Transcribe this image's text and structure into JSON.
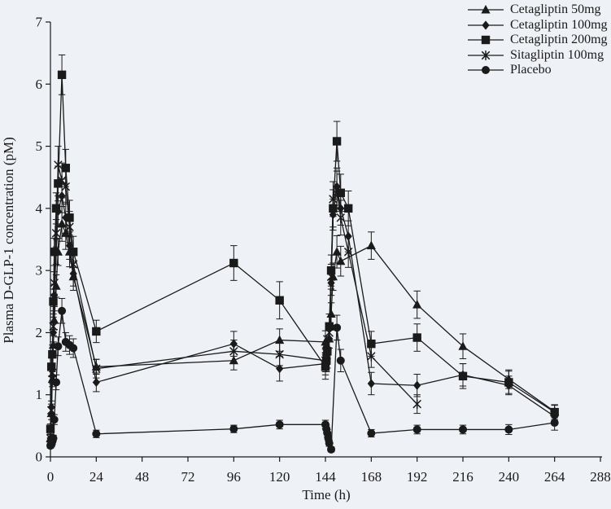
{
  "figure": {
    "background": "#eef1f6",
    "axis_color": "#1a1a1a",
    "text_color": "#1a1a1a"
  },
  "chart_data": {
    "type": "line",
    "title": "",
    "xlabel": "Time (h)",
    "ylabel": "Plasma D-GLP-1 concentration (pM)",
    "xlim": [
      0,
      288
    ],
    "ylim": [
      0,
      7
    ],
    "xticks": [
      0,
      24,
      48,
      72,
      96,
      120,
      144,
      168,
      192,
      216,
      240,
      264,
      288
    ],
    "yticks": [
      0,
      1,
      2,
      3,
      4,
      5,
      6,
      7
    ],
    "grid": false,
    "legend_position": "top-right",
    "error_bars": true,
    "series": [
      {
        "name": "Cetagliptin 50mg",
        "marker": "triangle",
        "color": "#1a1a1a",
        "x": [
          0,
          0.5,
          1,
          1.5,
          2,
          3,
          4,
          6,
          8,
          10,
          12,
          24,
          96,
          120,
          144,
          144.5,
          145,
          146,
          147,
          148,
          150,
          152,
          168,
          192,
          216,
          240,
          264
        ],
        "y": [
          0.3,
          0.7,
          1.25,
          1.8,
          2.2,
          2.75,
          3.3,
          3.75,
          3.6,
          3.3,
          2.9,
          1.45,
          1.55,
          1.88,
          1.85,
          1.8,
          1.78,
          1.9,
          2.3,
          2.9,
          3.3,
          3.15,
          3.4,
          2.45,
          1.78,
          1.25,
          0.73
        ],
        "err": [
          0.06,
          0.1,
          0.12,
          0.15,
          0.15,
          0.18,
          0.22,
          0.28,
          0.26,
          0.24,
          0.22,
          0.12,
          0.15,
          0.18,
          0.18,
          0.15,
          0.15,
          0.15,
          0.18,
          0.22,
          0.26,
          0.24,
          0.22,
          0.22,
          0.2,
          0.15,
          0.1
        ]
      },
      {
        "name": "Cetagliptin 100mg",
        "marker": "diamond",
        "color": "#1a1a1a",
        "x": [
          0,
          0.5,
          1,
          1.5,
          2,
          3,
          4,
          6,
          8,
          10,
          12,
          24,
          96,
          120,
          144,
          144.5,
          145,
          146,
          147,
          148,
          150,
          152,
          156,
          168,
          192,
          216,
          240,
          264
        ],
        "y": [
          0.3,
          0.8,
          1.3,
          2.0,
          2.6,
          3.3,
          3.95,
          4.2,
          3.85,
          3.4,
          2.95,
          1.2,
          1.82,
          1.42,
          1.5,
          1.52,
          1.58,
          1.9,
          2.8,
          3.9,
          4.35,
          4.0,
          3.55,
          1.18,
          1.15,
          1.32,
          1.15,
          0.65
        ],
        "err": [
          0.06,
          0.1,
          0.12,
          0.15,
          0.18,
          0.2,
          0.25,
          0.27,
          0.25,
          0.22,
          0.2,
          0.15,
          0.2,
          0.2,
          0.18,
          0.15,
          0.15,
          0.15,
          0.2,
          0.25,
          0.3,
          0.27,
          0.25,
          0.18,
          0.18,
          0.18,
          0.15,
          0.1
        ]
      },
      {
        "name": "Cetagliptin 200mg",
        "marker": "square",
        "color": "#1a1a1a",
        "x": [
          0,
          0.5,
          1,
          1.5,
          2,
          3,
          4,
          6,
          8,
          10,
          12,
          24,
          96,
          120,
          144,
          144.5,
          145,
          146,
          147,
          148,
          150,
          152,
          156,
          168,
          192,
          216,
          240,
          264
        ],
        "y": [
          0.45,
          1.45,
          1.65,
          2.5,
          3.3,
          4.0,
          4.4,
          6.15,
          4.65,
          3.85,
          3.3,
          2.02,
          3.12,
          2.52,
          1.45,
          1.55,
          1.7,
          2.1,
          3.0,
          4.0,
          5.08,
          4.25,
          4.0,
          1.82,
          1.92,
          1.3,
          1.2,
          0.72
        ],
        "err": [
          0.08,
          0.15,
          0.15,
          0.2,
          0.22,
          0.25,
          0.28,
          0.32,
          0.3,
          0.28,
          0.25,
          0.18,
          0.28,
          0.3,
          0.2,
          0.18,
          0.18,
          0.2,
          0.25,
          0.3,
          0.32,
          0.3,
          0.28,
          0.2,
          0.22,
          0.2,
          0.18,
          0.12
        ]
      },
      {
        "name": "Sitagliptin 100mg",
        "marker": "asterisk",
        "color": "#1a1a1a",
        "x": [
          0,
          0.5,
          1,
          1.5,
          2,
          3,
          4,
          6,
          8,
          10,
          12,
          24,
          96,
          120,
          144,
          144.5,
          145,
          146,
          147,
          148,
          150,
          152,
          156,
          168,
          192
        ],
        "y": [
          0.3,
          0.75,
          1.35,
          2.1,
          2.8,
          3.6,
          4.7,
          4.45,
          4.35,
          3.7,
          3.1,
          1.42,
          1.7,
          1.65,
          1.55,
          1.58,
          1.7,
          2.0,
          2.9,
          4.15,
          4.3,
          3.85,
          3.3,
          1.62,
          0.85
        ],
        "err": [
          0.06,
          0.1,
          0.12,
          0.15,
          0.18,
          0.22,
          0.3,
          0.28,
          0.28,
          0.25,
          0.22,
          0.15,
          0.18,
          0.18,
          0.18,
          0.15,
          0.15,
          0.15,
          0.2,
          0.28,
          0.3,
          0.28,
          0.25,
          0.18,
          0.15
        ]
      },
      {
        "name": "Placebo",
        "marker": "circle",
        "color": "#1a1a1a",
        "x": [
          0,
          0.5,
          1,
          1.5,
          2,
          3,
          4,
          6,
          8,
          10,
          12,
          24,
          96,
          120,
          144,
          144.5,
          145,
          145.5,
          146,
          147,
          150,
          152,
          168,
          192,
          216,
          240,
          264
        ],
        "y": [
          0.18,
          0.2,
          0.25,
          0.3,
          0.6,
          1.2,
          1.78,
          2.35,
          1.85,
          1.8,
          1.75,
          0.37,
          0.45,
          0.52,
          0.52,
          0.45,
          0.38,
          0.3,
          0.22,
          0.12,
          2.08,
          1.55,
          0.38,
          0.44,
          0.44,
          0.44,
          0.55
        ],
        "err": [
          0.04,
          0.04,
          0.05,
          0.05,
          0.08,
          0.12,
          0.15,
          0.2,
          0.15,
          0.15,
          0.15,
          0.06,
          0.06,
          0.07,
          0.07,
          0.06,
          0.06,
          0.05,
          0.05,
          0.04,
          0.2,
          0.18,
          0.06,
          0.07,
          0.07,
          0.08,
          0.12
        ]
      }
    ]
  }
}
